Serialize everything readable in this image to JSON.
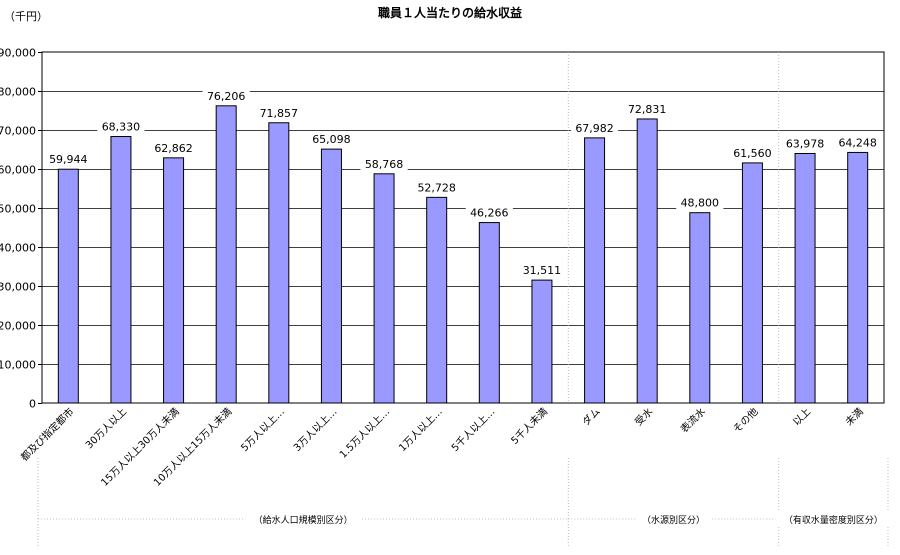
{
  "chart_data": {
    "type": "bar",
    "title": "職員１人当たりの給水収益",
    "unit_label": "（千円）",
    "ylim": [
      0,
      90000
    ],
    "y_ticks": [
      "0",
      "10,000",
      "20,000",
      "30,000",
      "40,000",
      "50,000",
      "60,000",
      "70,000",
      "80,000",
      "90,000"
    ],
    "grid": true,
    "legend": "none",
    "bar_color": "#9999ff",
    "categories": [
      "都及び指定都市",
      "30万人以上",
      "15万人以上30万人未満",
      "10万人以上15万人未満",
      "5万人以上…",
      "3万人以上…",
      "1.5万人以上…",
      "1万人以上…",
      "5千人以上…",
      "5千人未満",
      "ダム",
      "受水",
      "表流水",
      "その他",
      "以上",
      "未満"
    ],
    "values": [
      59944,
      68330,
      62862,
      76206,
      71857,
      65098,
      58768,
      52728,
      46266,
      31511,
      67982,
      72831,
      48800,
      61560,
      63978,
      64248
    ],
    "value_labels": [
      "59,944",
      "68,330",
      "62,862",
      "76,206",
      "71,857",
      "65,098",
      "58,768",
      "52,728",
      "46,266",
      "31,511",
      "67,982",
      "72,831",
      "48,800",
      "61,560",
      "63,978",
      "64,248"
    ],
    "groups": [
      {
        "label": "（給水人口規模別区分）",
        "start": 0,
        "count": 10
      },
      {
        "label": "（水源別区分）",
        "start": 10,
        "count": 4
      },
      {
        "label": "（有収水量密度別区分）",
        "start": 14,
        "count": 2
      }
    ]
  }
}
